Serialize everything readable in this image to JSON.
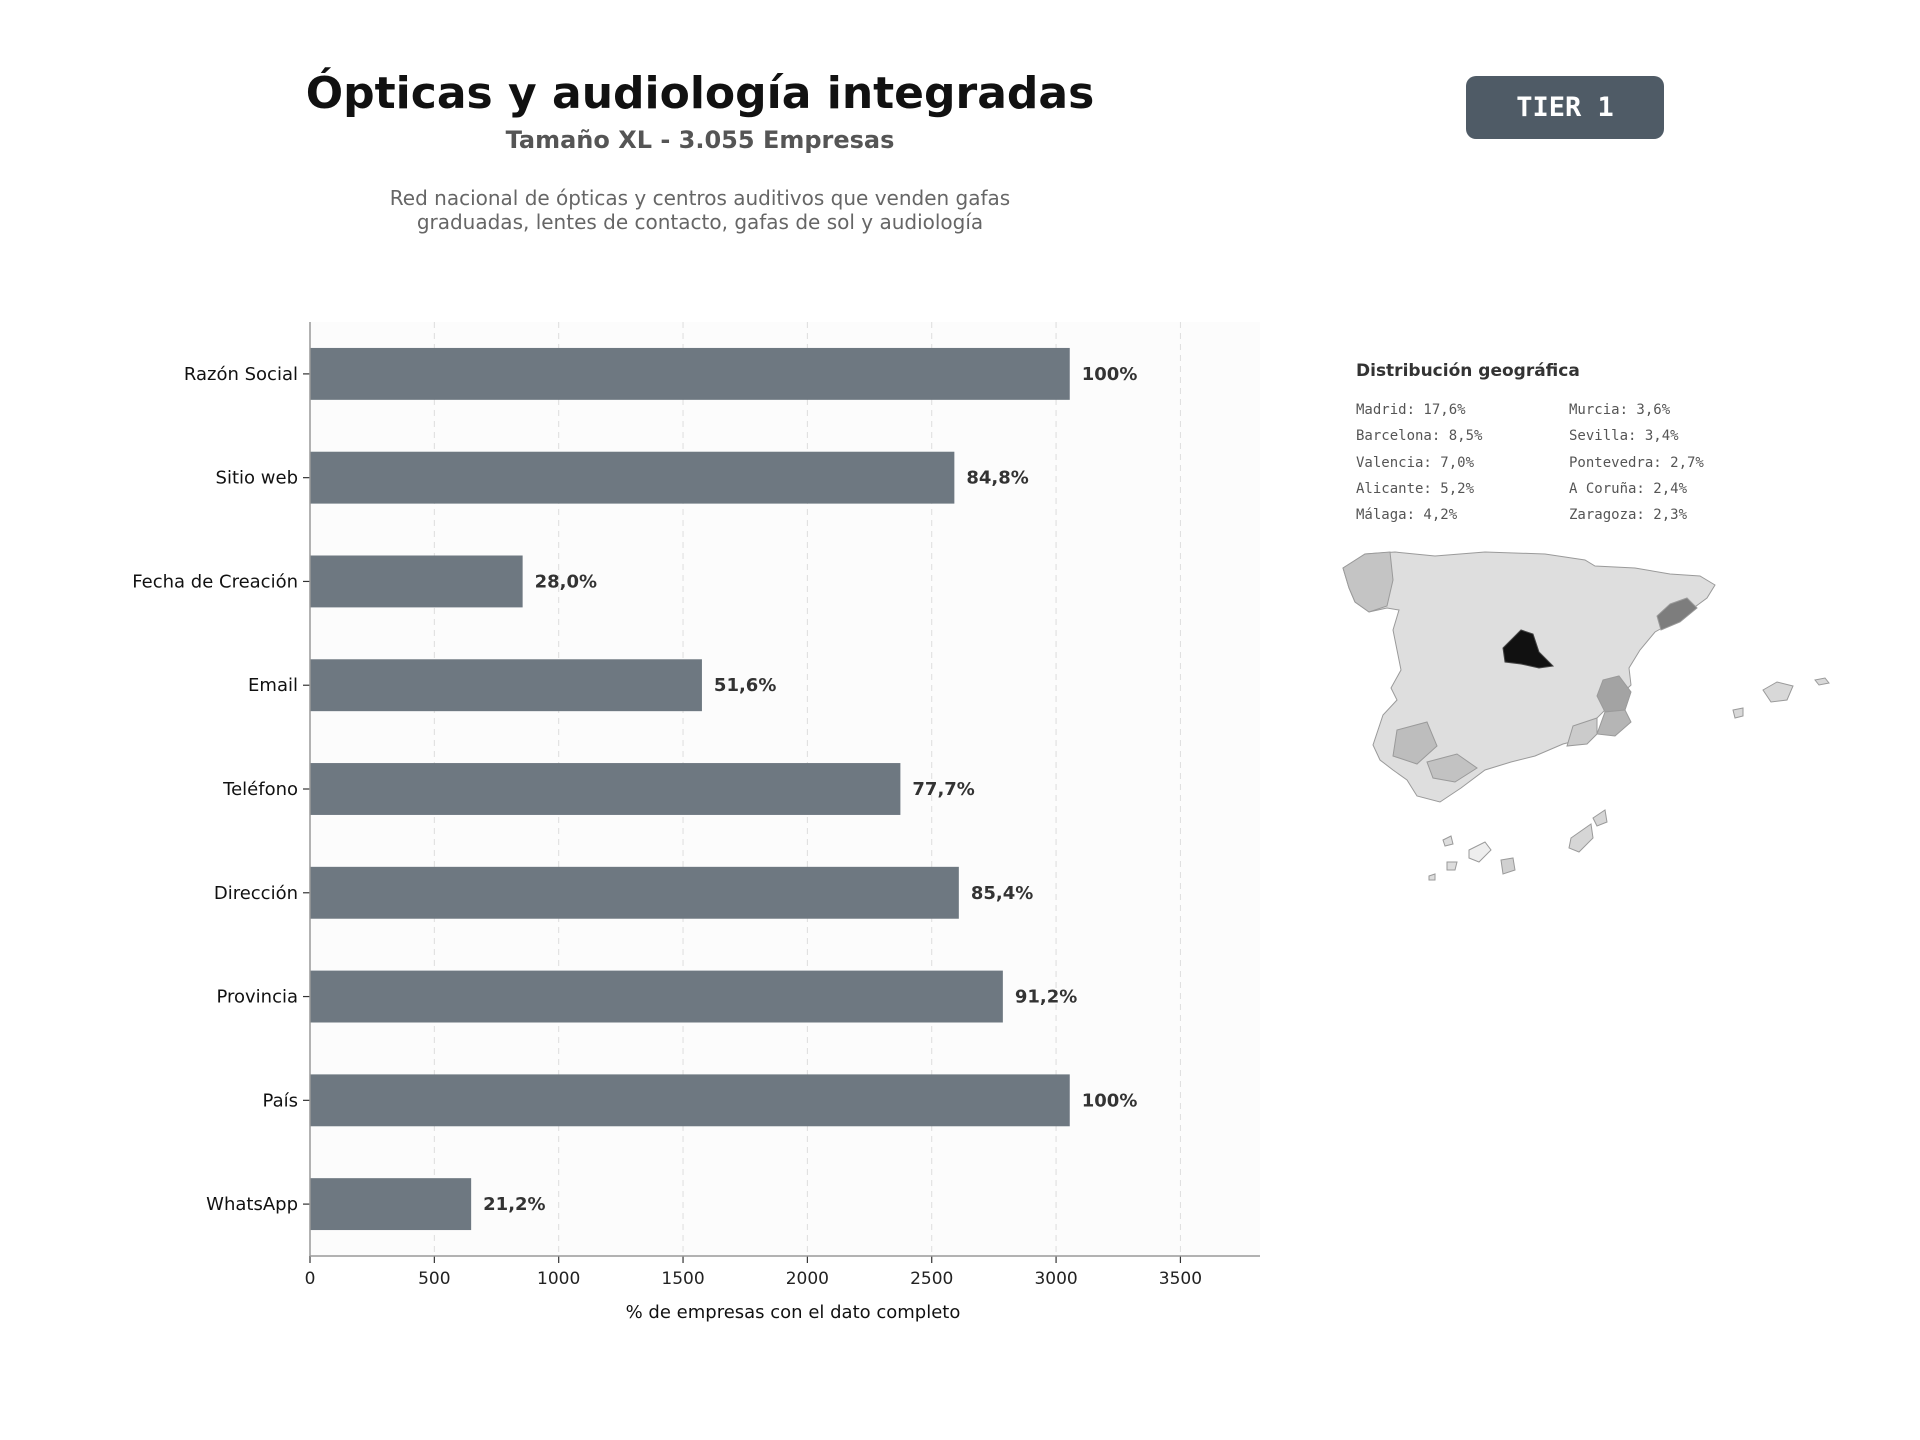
{
  "header": {
    "title": "Ópticas y audiología integradas",
    "subtitle": "Tamaño XL - 3.055 Empresas",
    "description_line1": "Red nacional de ópticas y centros auditivos que venden gafas",
    "description_line2": "graduadas, lentes de contacto, gafas de sol y audiología",
    "tier": "TIER 1"
  },
  "colors": {
    "bar": "#6e7881",
    "badge": "#4f5b66",
    "plot_background": "#fcfcfc",
    "map_highlight": "#111111"
  },
  "chart_data": {
    "type": "bar",
    "orientation": "horizontal",
    "categories": [
      "Razón Social",
      "Sitio web",
      "Fecha de Creación",
      "Email",
      "Teléfono",
      "Dirección",
      "Provincia",
      "País",
      "WhatsApp"
    ],
    "values": [
      3055,
      2591,
      855,
      1576,
      2374,
      2609,
      2786,
      3055,
      648
    ],
    "value_labels": [
      "100%",
      "84,8%",
      "28,0%",
      "51,6%",
      "77,7%",
      "85,4%",
      "91,2%",
      "100%",
      "21,2%"
    ],
    "xlabel": "% de empresas con el dato completo",
    "xlim": [
      0,
      3820
    ],
    "xticks": [
      0,
      500,
      1000,
      1500,
      2000,
      2500,
      3000,
      3500
    ],
    "grid": "vertical dashed"
  },
  "geo": {
    "title": "Distribución geográfica",
    "column1": [
      "Madrid: 17,6%",
      "Barcelona: 8,5%",
      "Valencia: 7,0%",
      "Alicante: 5,2%",
      "Málaga: 4,2%"
    ],
    "column2": [
      "Murcia: 3,6%",
      "Sevilla: 3,4%",
      "Pontevedra: 2,7%",
      "A Coruña: 2,4%",
      "Zaragoza: 2,3%"
    ]
  }
}
